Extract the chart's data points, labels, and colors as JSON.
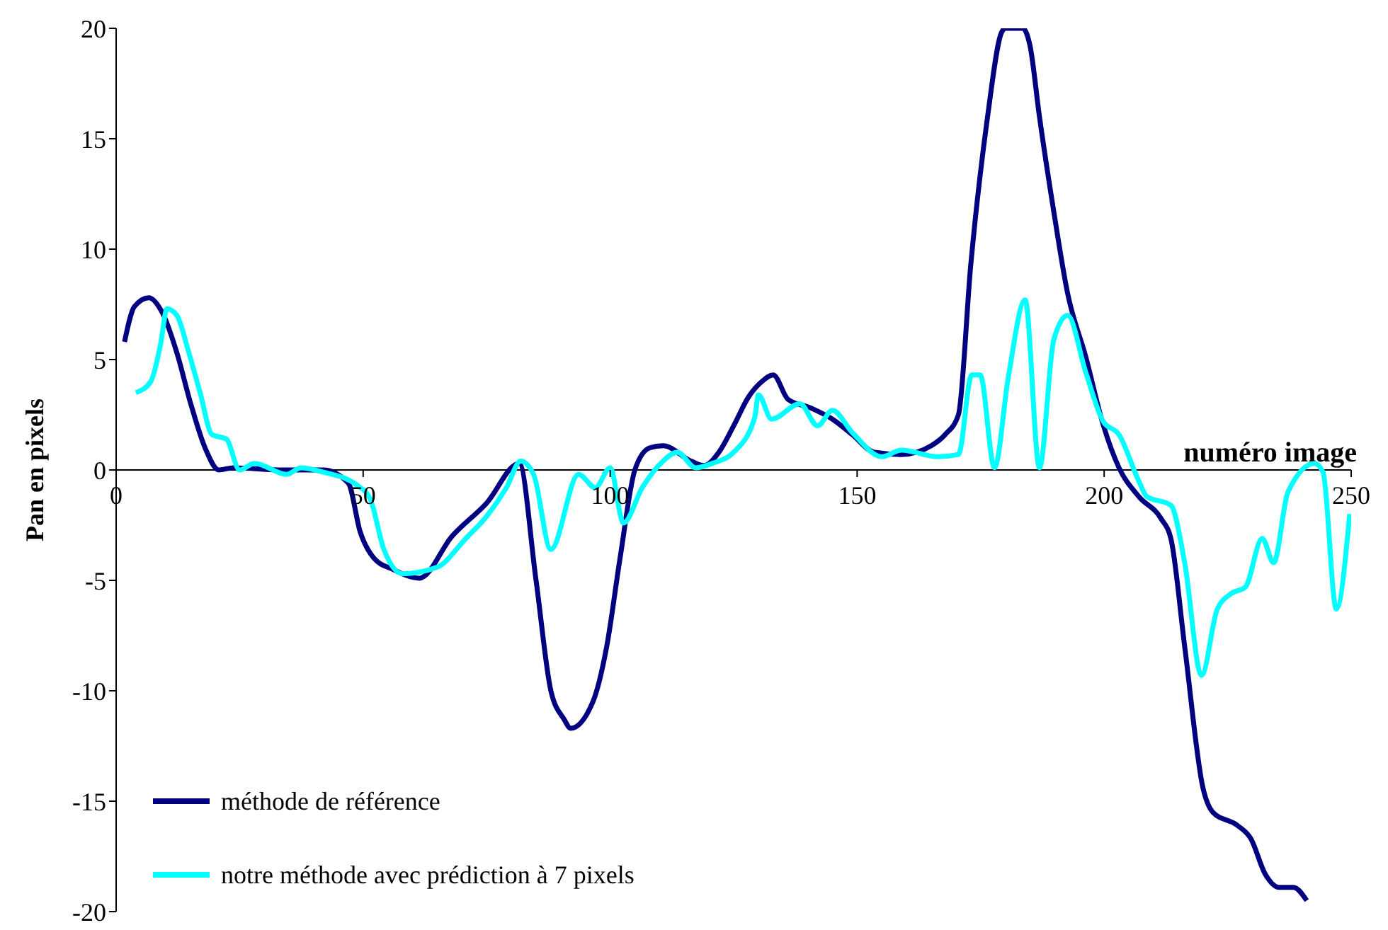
{
  "chart_data": {
    "type": "line",
    "xlabel": "numéro image",
    "ylabel": "Pan en pixels",
    "xlim": [
      0,
      250
    ],
    "xticks": [
      0,
      50,
      100,
      150,
      200,
      250
    ],
    "ylim": [
      -20,
      20
    ],
    "yticks": [
      -20,
      -15,
      -10,
      -5,
      0,
      5,
      10,
      15,
      20
    ],
    "grid": false,
    "legend": "bottom left",
    "marker": "none",
    "line_style": "solid",
    "series": [
      {
        "name": "méthode de référence",
        "color": "#000080",
        "x": [
          1.7,
          3.7,
          6.6,
          9.4,
          12.3,
          15.1,
          18,
          20.8,
          23.7,
          33.7,
          42,
          47,
          49.4,
          52.2,
          56,
          61.4,
          68,
          75,
          81.6,
          85,
          88,
          90.7,
          92,
          96.5,
          99.3,
          102,
          105,
          108,
          110.7,
          116.4,
          119,
          122,
          125,
          128,
          130.7,
          133,
          136,
          140.7,
          145,
          149,
          153.5,
          159,
          165,
          167.8,
          170.5,
          173,
          176.4,
          179.2,
          180,
          183.5,
          185,
          186.9,
          189.8,
          192.6,
          196.3,
          199.8,
          203,
          207,
          211.5,
          213.5,
          216.3,
          220,
          222,
          227,
          229.7,
          232.6,
          235.4,
          238.3,
          241
        ],
        "values": [
          5.8,
          7.4,
          7.8,
          7.1,
          5.3,
          3.0,
          1.0,
          0,
          0.1,
          0,
          0,
          -0.6,
          -2.8,
          -4.0,
          -4.5,
          -4.9,
          -3,
          -1.5,
          0.3,
          -5,
          -10,
          -11.3,
          -11.7,
          -10.5,
          -8,
          -4,
          0,
          1,
          1.1,
          0.4,
          0.2,
          0.8,
          2,
          3.3,
          4.0,
          4.3,
          3.2,
          2.8,
          2.3,
          1.6,
          0.8,
          0.7,
          1.1,
          1.6,
          2.5,
          9.3,
          16,
          19.8,
          20,
          20,
          19.2,
          16,
          11.7,
          8.0,
          5.1,
          2.05,
          0.1,
          -1.2,
          -2.2,
          -3.1,
          -8,
          -14.4,
          -15.5,
          -16.1,
          -16.7,
          -18.3,
          -18.9,
          -18.9,
          -19.5
        ]
      },
      {
        "name": "notre méthode avec prédiction à 7 pixels",
        "color": "#00ffff",
        "x": [
          4,
          7,
          9,
          10.3,
          12.3,
          14.6,
          17,
          19.4,
          22.3,
          25,
          28,
          34.5,
          37.4,
          42,
          48.8,
          51.4,
          54.2,
          58,
          65,
          70.8,
          75,
          79,
          81.9,
          84.5,
          88,
          93.6,
          97,
          100,
          102.7,
          106.5,
          110.7,
          113.6,
          117.3,
          120.7,
          125,
          129.3,
          130,
          132.7,
          138.4,
          142,
          145,
          149,
          155,
          159,
          166.3,
          170.5,
          173.2,
          174.9,
          177.8,
          180.6,
          184,
          186.9,
          189.8,
          192.6,
          196.3,
          199.8,
          203,
          207,
          208.6,
          213.5,
          216.3,
          219.7,
          222.9,
          225.7,
          228.6,
          232,
          234.3,
          237.2,
          242.6,
          244.3,
          247,
          249.7
        ],
        "values": [
          3.5,
          4.0,
          5.7,
          7.3,
          7.0,
          5.4,
          3.5,
          1.6,
          1.4,
          0,
          0.3,
          -0.2,
          0.1,
          -0.1,
          -0.7,
          -1.3,
          -3.6,
          -4.7,
          -4.4,
          -3.1,
          -2.1,
          -0.8,
          0.4,
          -0.2,
          -3.6,
          -0.2,
          -0.8,
          0.1,
          -2.4,
          -0.8,
          0.4,
          0.8,
          0.1,
          0.3,
          0.8,
          2.4,
          3.4,
          2.3,
          3.0,
          2.0,
          2.7,
          1.7,
          0.6,
          0.9,
          0.6,
          0.7,
          4.3,
          4.3,
          0.1,
          4.2,
          7.7,
          0.1,
          5.9,
          7.0,
          4.4,
          2.2,
          1.6,
          -0.5,
          -1.2,
          -1.6,
          -4.2,
          -9.3,
          -6.3,
          -5.6,
          -5.3,
          -3.1,
          -4.2,
          -1.0,
          0.3,
          -0.1,
          -6.3,
          -2.0
        ]
      }
    ]
  }
}
